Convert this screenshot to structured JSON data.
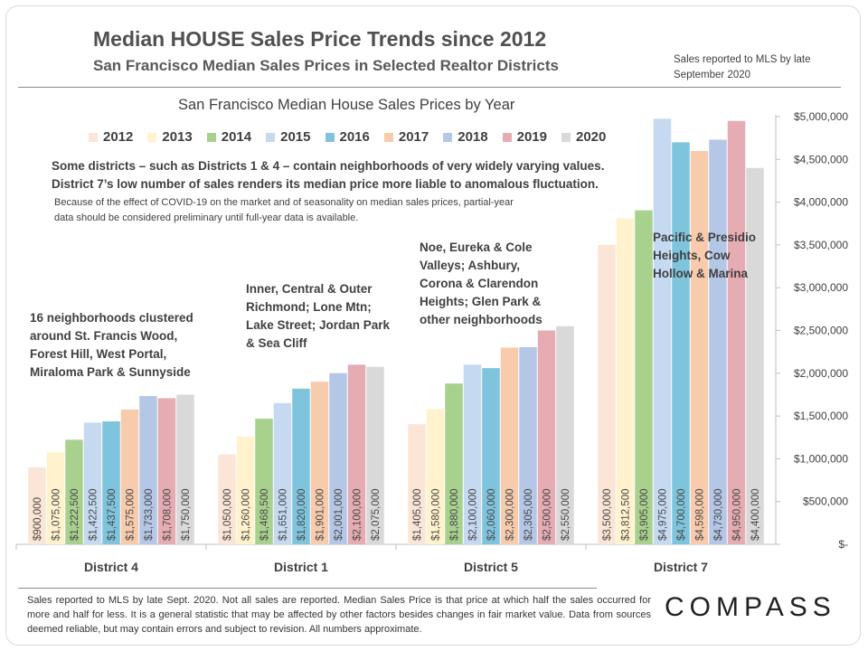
{
  "header": {
    "title": "Median HOUSE Sales Price Trends since 2012",
    "subtitle": "San Francisco Median Sales Prices in Selected Realtor Districts",
    "mls_note": "Sales reported to MLS by late September 2020"
  },
  "notes": {
    "districts_note": "Some districts – such as Districts 1 & 4 – contain neighborhoods of very widely varying values. District 7’s low number of sales renders its median price more liable to anomalous fluctuation.",
    "covid_note": "Because of the effect of COVID-19 on the market and of seasonality on median sales prices, partial-year data should be considered preliminary until full-year data is available."
  },
  "district_descriptions": {
    "district4": "16 neighborhoods clustered around St. Francis Wood, Forest Hill, West Portal, Miraloma Park & Sunnyside",
    "district1": "Inner, Central & Outer Richmond; Lone Mtn; Lake Street; Jordan Park & Sea Cliff",
    "district5": "Noe, Eureka & Cole Valleys; Ashbury, Corona & Clarendon Heights; Glen Park & other neighborhoods",
    "district7": "Pacific & Presidio Heights, Cow Hollow & Marina"
  },
  "footer": {
    "text": "Sales reported to MLS by late Sept. 2020. Not all sales are reported. Median Sales Price is that price at which half the sales occurred for more and half for less. It is a general statistic that may be affected by other factors besides changes in fair market value. Data from sources deemed reliable, but may contain errors and subject to revision.  All numbers approximate.",
    "logo": "COMPASS"
  },
  "chart_data": {
    "type": "bar",
    "title": "San Francisco Median House Sales Prices by Year",
    "categories": [
      "District 4",
      "District 1",
      "District 5",
      "District 7"
    ],
    "ylim": [
      0,
      5000000
    ],
    "yticks": [
      0,
      500000,
      1000000,
      1500000,
      2000000,
      2500000,
      3000000,
      3500000,
      4000000,
      4500000,
      5000000
    ],
    "ytick_labels": [
      "$-",
      "$500,000",
      "$1,000,000",
      "$1,500,000",
      "$2,000,000",
      "$2,500,000",
      "$3,000,000",
      "$3,500,000",
      "$4,000,000",
      "$4,500,000",
      "$5,000,000"
    ],
    "legend_position": "top",
    "grid": false,
    "series": [
      {
        "name": "2012",
        "color": "#fbe5d6",
        "values": [
          900000,
          1050000,
          1405000,
          3500000
        ],
        "labels": [
          "$900,000",
          "$1,050,000",
          "$1,405,000",
          "$3,500,000"
        ]
      },
      {
        "name": "2013",
        "color": "#fff2cc",
        "values": [
          1075000,
          1260000,
          1580000,
          3812500
        ],
        "labels": [
          "$1,075,000",
          "$1,260,000",
          "$1,580,000",
          "$3,812,500"
        ]
      },
      {
        "name": "2014",
        "color": "#a9d18e",
        "values": [
          1222500,
          1468500,
          1880000,
          3905000
        ],
        "labels": [
          "$1,222,500",
          "$1,468,500",
          "$1,880,000",
          "$3,905,000"
        ]
      },
      {
        "name": "2015",
        "color": "#c5d9f1",
        "values": [
          1422500,
          1651000,
          2100000,
          4975000
        ],
        "labels": [
          "$1,422,500",
          "$1,651,000",
          "$2,100,000",
          "$4,975,000"
        ]
      },
      {
        "name": "2016",
        "color": "#7fc4dd",
        "values": [
          1437500,
          1820000,
          2060000,
          4700000
        ],
        "labels": [
          "$1,437,500",
          "$1,820,000",
          "$2,060,000",
          "$4,700,000"
        ]
      },
      {
        "name": "2017",
        "color": "#f8cbad",
        "values": [
          1575000,
          1901000,
          2300000,
          4598000
        ],
        "labels": [
          "$1,575,000",
          "$1,901,000",
          "$2,300,000",
          "$4,598,000"
        ]
      },
      {
        "name": "2018",
        "color": "#b4c7e7",
        "values": [
          1733000,
          2001000,
          2305000,
          4730000
        ],
        "labels": [
          "$1,733,000",
          "$2,001,000",
          "$2,305,000",
          "$4,730,000"
        ]
      },
      {
        "name": "2019",
        "color": "#e6acb3",
        "values": [
          1708000,
          2100000,
          2500000,
          4950000
        ],
        "labels": [
          "$1,708,000",
          "$2,100,000",
          "$2,500,000",
          "$4,950,000"
        ]
      },
      {
        "name": "2020",
        "color": "#d9d9d9",
        "values": [
          1750000,
          2075000,
          2550000,
          4400000
        ],
        "labels": [
          "$1,750,000",
          "$2,075,000",
          "$2,550,000",
          "$4,400,000"
        ]
      }
    ]
  }
}
